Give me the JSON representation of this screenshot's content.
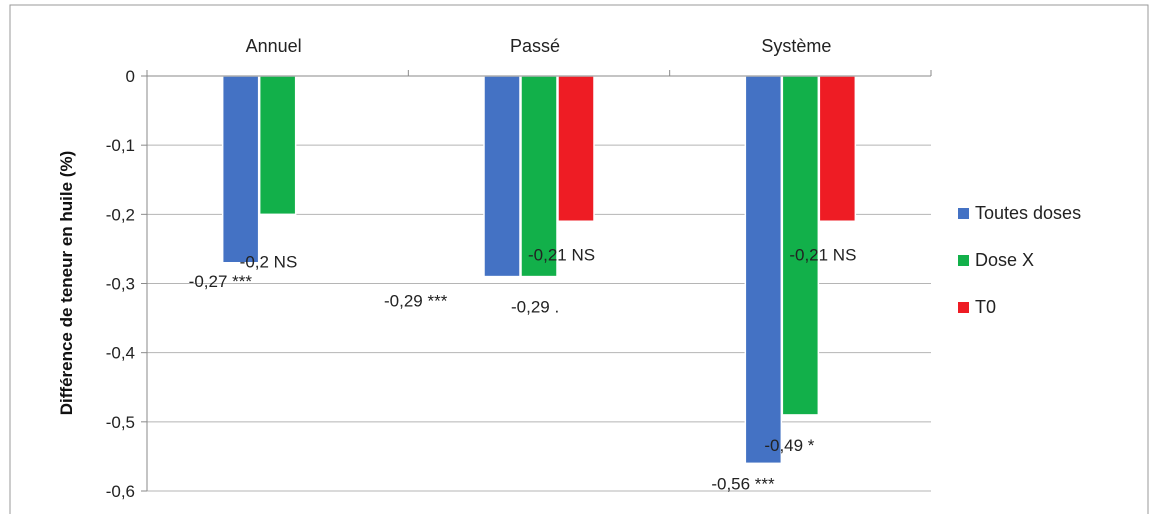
{
  "chart_data": {
    "type": "bar",
    "title": "",
    "xlabel": "",
    "ylabel": "Différence de teneur en huile  (%)",
    "ylim": [
      -0.6,
      0
    ],
    "y_ticks": [
      "0",
      "-0,1",
      "-0,2",
      "-0,3",
      "-0,4",
      "-0,5",
      "-0,6"
    ],
    "y_tick_values": [
      0,
      -0.1,
      -0.2,
      -0.3,
      -0.4,
      -0.5,
      -0.6
    ],
    "categories": [
      "Annuel",
      "Passé",
      "Système"
    ],
    "x_axis_position": "top",
    "grid": true,
    "legend_position": "right",
    "series": [
      {
        "name": "Toutes doses",
        "color": "#4472C4",
        "values": [
          -0.27,
          -0.29,
          -0.56
        ],
        "labels": [
          "-0,27 ***",
          "-0,29 ***",
          "-0,56 ***"
        ]
      },
      {
        "name": "Dose X",
        "color": "#12B04A",
        "values": [
          -0.2,
          -0.29,
          -0.49
        ],
        "labels": [
          "-0,2 NS",
          "-0,29 .",
          "-0,49 *"
        ]
      },
      {
        "name": "T0",
        "color": "#EE1C24",
        "values": [
          null,
          -0.21,
          -0.21
        ],
        "labels": [
          null,
          "-0,21 NS",
          "-0,21 NS"
        ]
      }
    ]
  }
}
